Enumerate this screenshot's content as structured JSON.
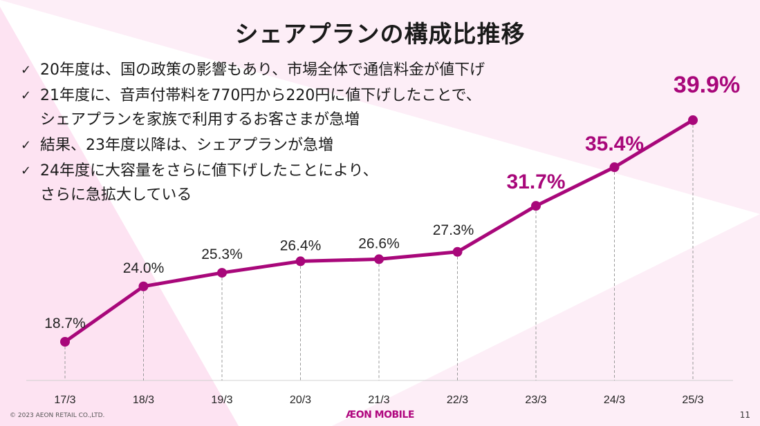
{
  "title": "シェアプランの構成比推移",
  "bullets": [
    "20年度は、国の政策の影響もあり、市場全体で通信料金が値下げ",
    "21年度に、音声付帯料を770円から220円に値下げしたことで、\nシェアプランを家族で利用するお客さまが急増",
    "結果、23年度以降は、シェアプランが急増",
    "24年度に大容量をさらに値下げしたことにより、\nさらに急拡大している"
  ],
  "check_icon": "✓",
  "footer": {
    "copyright": "© 2023 AEON RETAIL CO.,LTD.",
    "logo": "ÆON MOBILE",
    "page": "11"
  },
  "colors": {
    "line": "#a8077a",
    "highlight": "#a8077a",
    "text": "#1a1a1a"
  },
  "chart_data": {
    "type": "line",
    "title": "シェアプランの構成比推移",
    "categories": [
      "17/3",
      "18/3",
      "19/3",
      "20/3",
      "21/3",
      "22/3",
      "23/3",
      "24/3",
      "25/3"
    ],
    "values": [
      18.7,
      24.0,
      25.3,
      26.4,
      26.6,
      27.3,
      31.7,
      35.4,
      39.9
    ],
    "labels": [
      "18.7%",
      "24.0%",
      "25.3%",
      "26.4%",
      "26.6%",
      "27.3%",
      "31.7%",
      "35.4%",
      "39.9%"
    ],
    "highlighted_from_index": 6,
    "unit": "%",
    "xlabel": "",
    "ylabel": "",
    "grid": false
  }
}
